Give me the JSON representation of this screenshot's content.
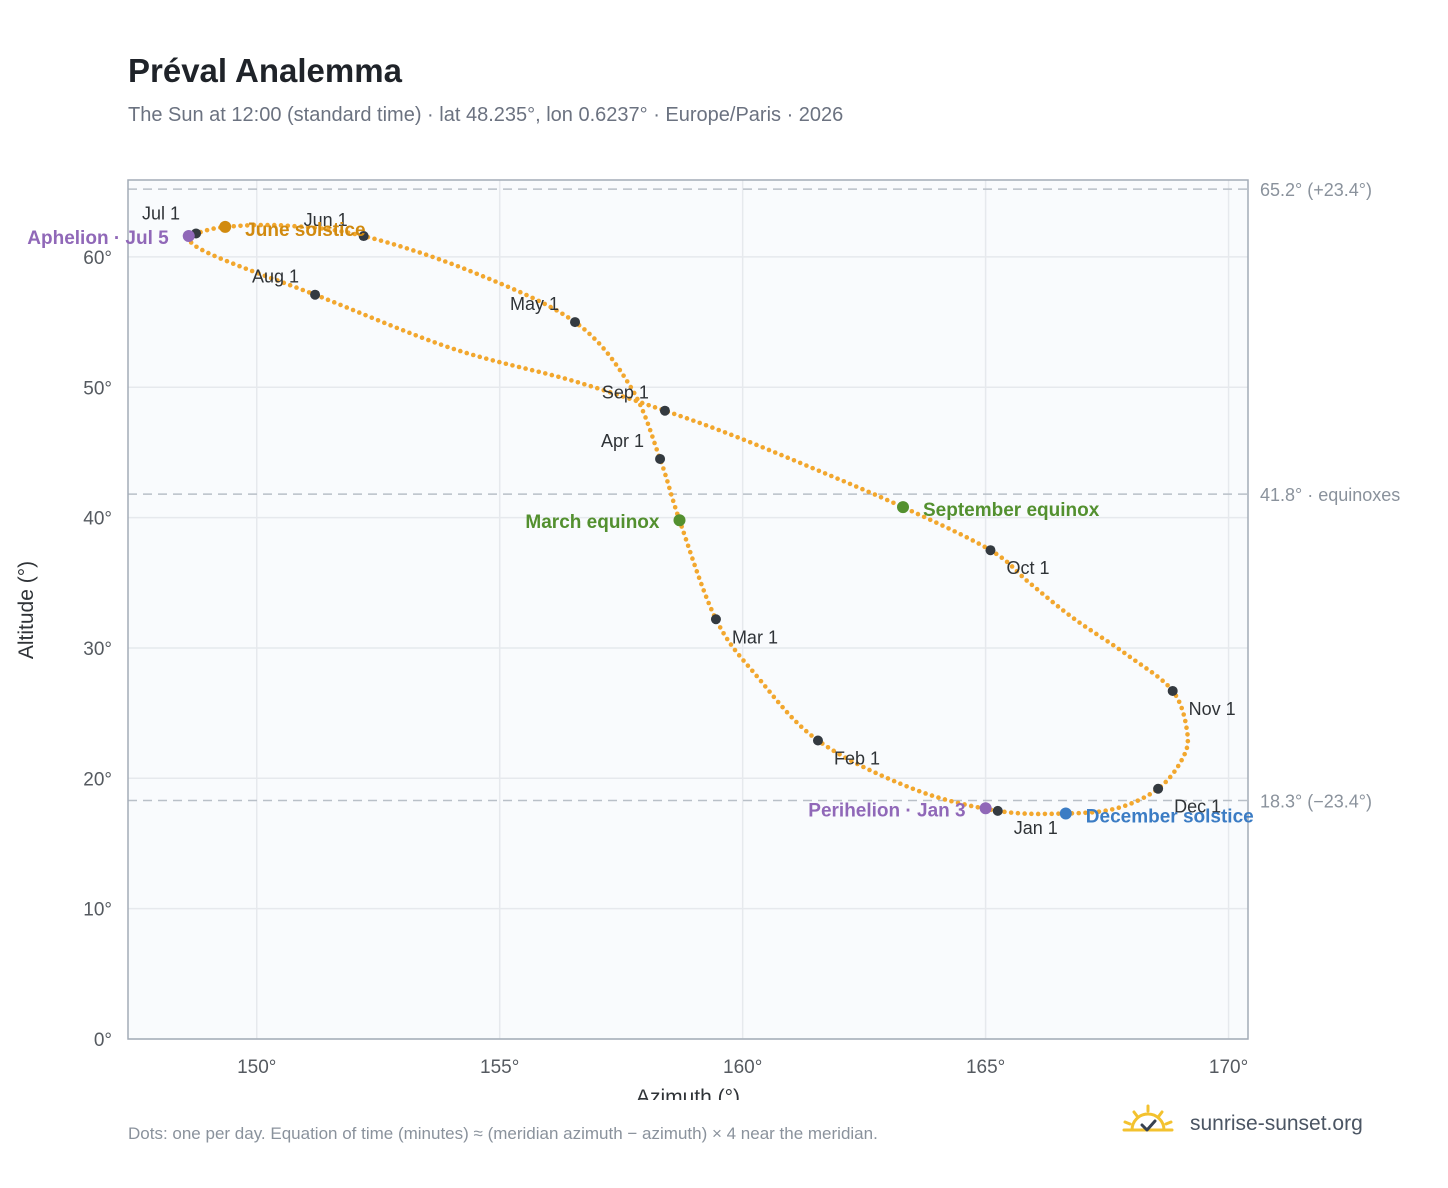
{
  "title": "Préval Analemma",
  "subtitle": "The Sun at 12:00 (standard time) · lat 48.235°, lon 0.6237° · Europe/Paris · 2026",
  "footnote": "Dots: one per day. Equation of time (minutes) ≈ (meridian azimuth − azimuth) × 4 near the meridian.",
  "brand": {
    "name": "sunrise-sunset.org",
    "icon": "sun-logo-icon"
  },
  "colors": {
    "curve": "#f2a72e",
    "month_marker": "#343a40",
    "solstice_june": "#d18a0f",
    "solstice_december": "#3b7cc4",
    "equinox": "#53902f",
    "apsis": "#9068b8",
    "plot_bg": "#f9fbfd",
    "grid": "#e6e9ed",
    "reference_line": "#b9c0c8"
  },
  "chart_data": {
    "type": "scatter",
    "title": "Préval Analemma",
    "xlabel": "Azimuth (°)",
    "ylabel": "Altitude (°)",
    "xlim": [
      147.35,
      170.4
    ],
    "ylim": [
      0,
      65.9
    ],
    "x_ticks": [
      150,
      155,
      160,
      165,
      170
    ],
    "x_tick_labels": [
      "150°",
      "155°",
      "160°",
      "165°",
      "170°"
    ],
    "y_ticks": [
      0,
      10,
      20,
      30,
      40,
      50,
      60
    ],
    "y_tick_labels": [
      "0°",
      "10°",
      "20°",
      "30°",
      "40°",
      "50°",
      "60°"
    ],
    "grid": true,
    "reference_lines": [
      {
        "y": 65.2,
        "label": "65.2° (+23.4°)"
      },
      {
        "y": 41.8,
        "label": "41.8° · equinoxes"
      },
      {
        "y": 18.3,
        "label": "18.3° (−23.4°)"
      }
    ],
    "month_markers": [
      {
        "label": "Jan 1",
        "azimuth": 165.25,
        "altitude": 17.5
      },
      {
        "label": "Feb 1",
        "azimuth": 161.55,
        "altitude": 22.9
      },
      {
        "label": "Mar 1",
        "azimuth": 159.45,
        "altitude": 32.2
      },
      {
        "label": "Apr 1",
        "azimuth": 158.3,
        "altitude": 44.5
      },
      {
        "label": "May 1",
        "azimuth": 156.55,
        "altitude": 55.0
      },
      {
        "label": "Jun 1",
        "azimuth": 152.2,
        "altitude": 61.6
      },
      {
        "label": "Jul 1",
        "azimuth": 148.75,
        "altitude": 61.8
      },
      {
        "label": "Aug 1",
        "azimuth": 151.2,
        "altitude": 57.1
      },
      {
        "label": "Sep 1",
        "azimuth": 158.4,
        "altitude": 48.2
      },
      {
        "label": "Oct 1",
        "azimuth": 165.1,
        "altitude": 37.5
      },
      {
        "label": "Nov 1",
        "azimuth": 168.85,
        "altitude": 26.7
      },
      {
        "label": "Dec 1",
        "azimuth": 168.55,
        "altitude": 19.2
      }
    ],
    "events": [
      {
        "label": "June solstice",
        "azimuth": 149.35,
        "altitude": 62.3,
        "color": "#d18a0f"
      },
      {
        "label": "December solstice",
        "azimuth": 166.65,
        "altitude": 17.3,
        "color": "#3b7cc4"
      },
      {
        "label": "March equinox",
        "azimuth": 158.7,
        "altitude": 39.8,
        "color": "#53902f"
      },
      {
        "label": "September equinox",
        "azimuth": 163.3,
        "altitude": 40.8,
        "color": "#53902f"
      },
      {
        "label": "Aphelion · Jul 5",
        "azimuth": 148.6,
        "altitude": 61.6,
        "color": "#9068b8"
      },
      {
        "label": "Perihelion · Jan 3",
        "azimuth": 165.0,
        "altitude": 17.7,
        "color": "#9068b8"
      }
    ],
    "series": [
      {
        "points": [
          [
            165.25,
            17.5
          ],
          [
            166.65,
            17.3
          ],
          [
            167.7,
            17.7
          ],
          [
            168.55,
            19.2
          ],
          [
            169.05,
            21.5
          ],
          [
            169.15,
            23.5
          ],
          [
            168.85,
            26.7
          ],
          [
            167.9,
            29.5
          ],
          [
            166.8,
            32.3
          ],
          [
            165.9,
            35.0
          ],
          [
            165.1,
            37.5
          ],
          [
            163.3,
            40.8
          ],
          [
            161.5,
            43.7
          ],
          [
            159.8,
            46.3
          ],
          [
            158.4,
            48.2
          ],
          [
            156.5,
            50.5
          ],
          [
            154.0,
            53.0
          ],
          [
            151.2,
            57.1
          ],
          [
            149.5,
            59.5
          ],
          [
            148.75,
            60.8
          ],
          [
            148.6,
            61.6
          ],
          [
            148.75,
            61.8
          ],
          [
            149.35,
            62.3
          ],
          [
            150.6,
            62.4
          ],
          [
            152.2,
            61.6
          ],
          [
            154.4,
            58.9
          ],
          [
            156.55,
            55.0
          ],
          [
            157.7,
            50.0
          ],
          [
            158.3,
            44.5
          ],
          [
            158.7,
            39.8
          ],
          [
            159.45,
            32.2
          ],
          [
            160.3,
            27.8
          ],
          [
            161.55,
            22.9
          ],
          [
            163.5,
            19.2
          ],
          [
            165.25,
            17.5
          ]
        ]
      }
    ]
  }
}
